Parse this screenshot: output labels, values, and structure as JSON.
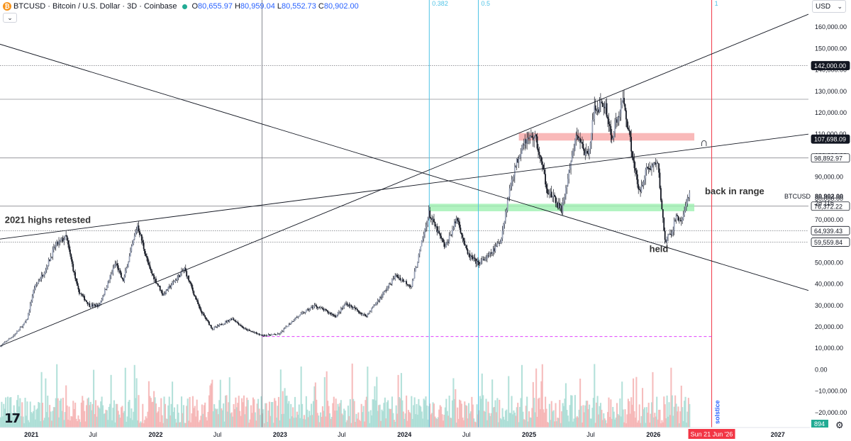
{
  "header": {
    "symbol_title": "BTCUSD · Bitcoin / U.S. Dollar · 3D · Coinbase",
    "logo_glyph": "₿",
    "ohlc": [
      {
        "label": "O",
        "value": "80,655.97"
      },
      {
        "label": "H",
        "value": "80,959.04"
      },
      {
        "label": "L",
        "value": "80,552.73"
      },
      {
        "label": "C",
        "value": "80,902.00"
      }
    ],
    "collapse_glyph": "⌄"
  },
  "currency_button": {
    "label": "USD",
    "icon": "chevron-down-icon"
  },
  "footer": {
    "logo": "17",
    "settings_icon": "gear-icon"
  },
  "colors": {
    "up": "#131722",
    "down": "#131722",
    "body": "#9aa3b8",
    "fib": "#4fc3e6",
    "red_line": "#f23645",
    "green_zone": "#9ef0b0",
    "red_zone": "#f7a7a7",
    "magenta": "#e040fb",
    "vol_up": "#a7dcd3",
    "vol_down": "#f4b2b2"
  },
  "chart_data": {
    "type": "candlestick",
    "symbol": "BTCUSD",
    "timeframe": "3D",
    "price_scale": {
      "min": -27000,
      "max": 170000,
      "ticks": [
        160000,
        150000,
        140000,
        130000,
        120000,
        110000,
        100000,
        90000,
        80000,
        70000,
        60000,
        50000,
        40000,
        30000,
        20000,
        10000,
        0,
        -10000,
        -20000
      ],
      "tick_labels": [
        "160,000.00",
        "150,000.00",
        "140,000.00",
        "130,000.00",
        "120,000.00",
        "110,000.00",
        "100,000.00",
        "90,000.00",
        "80,000.00",
        "70,000.00",
        "60,000.00",
        "50,000.00",
        "40,000.00",
        "30,000.00",
        "20,000.00",
        "10,000.00",
        "0.00",
        "−10,000.00",
        "−20,000.00"
      ]
    },
    "time_axis": {
      "start": "2020-10-01",
      "end": "2027-04-01",
      "ticks": [
        {
          "date": "2021-01-01",
          "label": "2021",
          "bold": true
        },
        {
          "date": "2021-07-01",
          "label": "Jul",
          "bold": false
        },
        {
          "date": "2022-01-01",
          "label": "2022",
          "bold": true
        },
        {
          "date": "2022-07-01",
          "label": "Jul",
          "bold": false
        },
        {
          "date": "2023-01-01",
          "label": "2023",
          "bold": true
        },
        {
          "date": "2023-07-01",
          "label": "Jul",
          "bold": false
        },
        {
          "date": "2024-01-01",
          "label": "2024",
          "bold": true
        },
        {
          "date": "2024-07-01",
          "label": "Jul",
          "bold": false
        },
        {
          "date": "2025-01-01",
          "label": "2025",
          "bold": true
        },
        {
          "date": "2025-07-01",
          "label": "Jul",
          "bold": false
        },
        {
          "date": "2026-01-01",
          "label": "2026",
          "bold": true
        },
        {
          "date": "2026-07-01",
          "label": "Jul",
          "bold": false
        },
        {
          "date": "2027-01-01",
          "label": "2027",
          "bold": true
        }
      ]
    },
    "price_path": [
      [
        "2020-10-01",
        10800
      ],
      [
        "2020-11-15",
        16500
      ],
      [
        "2020-12-20",
        23000
      ],
      [
        "2021-01-10",
        38000
      ],
      [
        "2021-02-10",
        46000
      ],
      [
        "2021-03-14",
        58000
      ],
      [
        "2021-04-14",
        62000
      ],
      [
        "2021-05-19",
        37000
      ],
      [
        "2021-06-22",
        30000
      ],
      [
        "2021-07-20",
        30000
      ],
      [
        "2021-09-07",
        50000
      ],
      [
        "2021-09-28",
        41000
      ],
      [
        "2021-11-10",
        67500
      ],
      [
        "2021-12-15",
        47000
      ],
      [
        "2022-01-24",
        35000
      ],
      [
        "2022-03-28",
        47000
      ],
      [
        "2022-05-12",
        28000
      ],
      [
        "2022-06-18",
        19000
      ],
      [
        "2022-08-15",
        24000
      ],
      [
        "2022-09-20",
        19000
      ],
      [
        "2022-11-09",
        16000
      ],
      [
        "2022-12-30",
        16500
      ],
      [
        "2023-02-15",
        24000
      ],
      [
        "2023-04-14",
        30000
      ],
      [
        "2023-06-15",
        25000
      ],
      [
        "2023-07-15",
        31000
      ],
      [
        "2023-09-11",
        25000
      ],
      [
        "2023-10-25",
        34000
      ],
      [
        "2023-12-08",
        44000
      ],
      [
        "2024-01-23",
        39000
      ],
      [
        "2024-03-14",
        73000
      ],
      [
        "2024-05-01",
        57000
      ],
      [
        "2024-06-05",
        71000
      ],
      [
        "2024-07-05",
        54000
      ],
      [
        "2024-08-05",
        49500
      ],
      [
        "2024-09-06",
        53000
      ],
      [
        "2024-10-10",
        60000
      ],
      [
        "2024-11-12",
        89000
      ],
      [
        "2024-12-17",
        107000
      ],
      [
        "2025-01-20",
        109000
      ],
      [
        "2025-02-25",
        84000
      ],
      [
        "2025-04-08",
        74500
      ],
      [
        "2025-05-22",
        110000
      ],
      [
        "2025-06-22",
        99000
      ],
      [
        "2025-07-14",
        122000
      ],
      [
        "2025-08-14",
        124000
      ],
      [
        "2025-09-01",
        108000
      ],
      [
        "2025-10-06",
        126000
      ],
      [
        "2025-11-21",
        82000
      ],
      [
        "2025-12-10",
        93000
      ],
      [
        "2026-01-14",
        97000
      ],
      [
        "2026-02-05",
        60000
      ],
      [
        "2026-02-25",
        64000
      ],
      [
        "2026-03-10",
        72000
      ],
      [
        "2026-03-25",
        69000
      ],
      [
        "2026-04-15",
        80900
      ]
    ],
    "horizontal_levels": [
      {
        "price": 142000,
        "label": "142,000.00",
        "style": "dotted"
      },
      {
        "price": 126296,
        "label": "126,296.00",
        "style": "solid"
      },
      {
        "price": 98892.97,
        "label": "98,892.97",
        "style": "solid"
      },
      {
        "price": 76372.22,
        "label": "76,372.22",
        "style": "solid"
      },
      {
        "price": 64939.43,
        "label": "64,939.43",
        "style": "dotted"
      },
      {
        "price": 59559.84,
        "label": "59,559.84",
        "style": "dotted"
      }
    ],
    "axis_badges": [
      {
        "price": 142000,
        "label": "142,000.00",
        "style": "dark"
      },
      {
        "price": 107698.09,
        "label": "107,698.09",
        "style": "dark"
      },
      {
        "price": 98892.97,
        "label": "98,892.97",
        "style": "outline"
      },
      {
        "price": 76372.22,
        "label": "76,372.22",
        "style": "outline"
      },
      {
        "price": 64939.43,
        "label": "64,939.43",
        "style": "outline"
      },
      {
        "price": 59559.84,
        "label": "59,559.84",
        "style": "outline"
      }
    ],
    "last_price": {
      "price": 80902.0,
      "symbol_label": "BTCUSD",
      "label": "80,902.00",
      "countdown": "2d 11h"
    },
    "trendlines": [
      {
        "from": [
          "2020-10-01",
          11000
        ],
        "to": [
          "2027-04-01",
          166000
        ]
      },
      {
        "from": [
          "2020-10-01",
          152000
        ],
        "to": [
          "2027-04-01",
          37000
        ]
      },
      {
        "from": [
          "2020-10-01",
          61000
        ],
        "to": [
          "2027-04-01",
          110000
        ]
      }
    ],
    "zones": [
      {
        "from": "2024-12-02",
        "to": "2026-05-01",
        "top": 110500,
        "bottom": 107000,
        "color": "red"
      },
      {
        "from": "2024-03-14",
        "to": "2026-05-01",
        "top": 77500,
        "bottom": 74000,
        "color": "green"
      }
    ],
    "fib_lines": [
      {
        "date": "2022-11-09",
        "label": ""
      },
      {
        "date": "2024-03-14",
        "label": "0.382"
      },
      {
        "date": "2024-08-05",
        "label": "0.5"
      },
      {
        "date": "2026-06-21",
        "label": "1"
      }
    ],
    "magenta_line": {
      "from": "2022-11-09",
      "to": "2026-06-21",
      "price": 15500
    },
    "solstice": {
      "date": "2026-06-21",
      "label": "solstice",
      "date_label": "Sun 21 Jun '26"
    },
    "annotations": [
      {
        "text": "2021 highs retested",
        "date": "2020-10-15",
        "price": 68500
      },
      {
        "text": "back in range",
        "date": "2026-06-01",
        "price": 82000
      },
      {
        "text": "held",
        "date": "2025-12-20",
        "price": 55000
      }
    ],
    "volume_badge": "894"
  }
}
